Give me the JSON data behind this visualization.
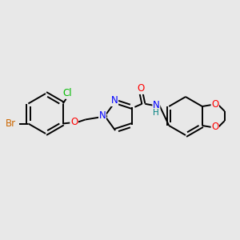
{
  "background_color": "#e8e8e8",
  "bond_color": "#000000",
  "atom_colors": {
    "Br": "#cc6600",
    "Cl": "#00bb00",
    "O": "#ff0000",
    "N": "#0000ff",
    "H": "#008080",
    "C": "#000000"
  },
  "figsize": [
    3.0,
    3.0
  ],
  "dpi": 100
}
